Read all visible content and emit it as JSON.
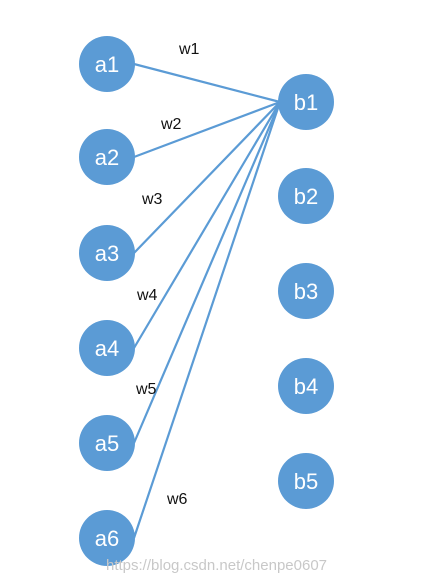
{
  "nodes": {
    "a1": "a1",
    "a2": "a2",
    "a3": "a3",
    "a4": "a4",
    "a5": "a5",
    "a6": "a6",
    "b1": "b1",
    "b2": "b2",
    "b3": "b3",
    "b4": "b4",
    "b5": "b5"
  },
  "weights": {
    "w1": "w1",
    "w2": "w2",
    "w3": "w3",
    "w4": "w4",
    "w5": "w5",
    "w6": "w6"
  },
  "edges": [
    {
      "from": "a1",
      "to": "b1",
      "weight": "w1"
    },
    {
      "from": "a2",
      "to": "b1",
      "weight": "w2"
    },
    {
      "from": "a3",
      "to": "b1",
      "weight": "w3"
    },
    {
      "from": "a4",
      "to": "b1",
      "weight": "w4"
    },
    {
      "from": "a5",
      "to": "b1",
      "weight": "w5"
    },
    {
      "from": "a6",
      "to": "b1",
      "weight": "w6"
    }
  ],
  "watermark": "https://blog.csdn.net/chenpe0607",
  "colors": {
    "node": "#5b9bd5",
    "edge": "#5b9bd5",
    "node_text": "#ffffff",
    "label_text": "#111111"
  }
}
